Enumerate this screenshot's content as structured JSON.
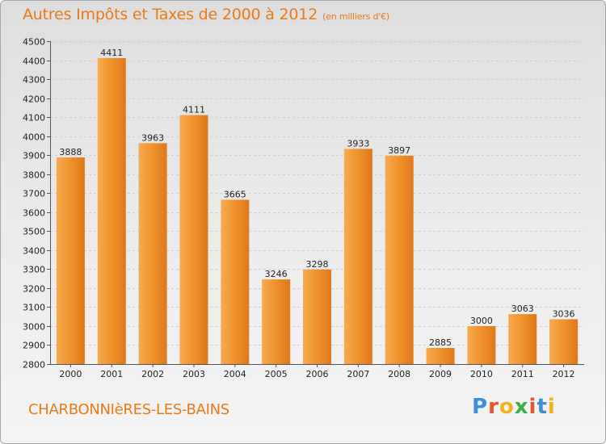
{
  "chart_data": {
    "type": "bar",
    "title": "Autres Impôts et Taxes de 2000 à 2012",
    "subtitle": "(en milliers d'€)",
    "categories": [
      "2000",
      "2001",
      "2002",
      "2003",
      "2004",
      "2005",
      "2006",
      "2007",
      "2008",
      "2009",
      "2010",
      "2011",
      "2012"
    ],
    "values": [
      3888,
      4411,
      3963,
      4111,
      3665,
      3246,
      3298,
      3933,
      3897,
      2885,
      3000,
      3063,
      3036
    ],
    "ylim": [
      2800,
      4500
    ],
    "ytick_step": 100,
    "grid": true,
    "legend": "none",
    "bar_color": "#f0942e",
    "bar_color_light": "#f7aa52",
    "bar_color_dark": "#e07818",
    "title_color": "#e87a18"
  },
  "footer": {
    "commune": "CHARBONNIèRES-LES-BAINS"
  },
  "logo": {
    "text": "Proxiti",
    "letters": [
      "P",
      "r",
      "o",
      "x",
      "i",
      "t",
      "i"
    ],
    "colors": [
      "#3d8fd6",
      "#e8542a",
      "#f2b11f",
      "#3fae49",
      "#e8542a",
      "#3d8fd6",
      "#f2b11f"
    ]
  }
}
